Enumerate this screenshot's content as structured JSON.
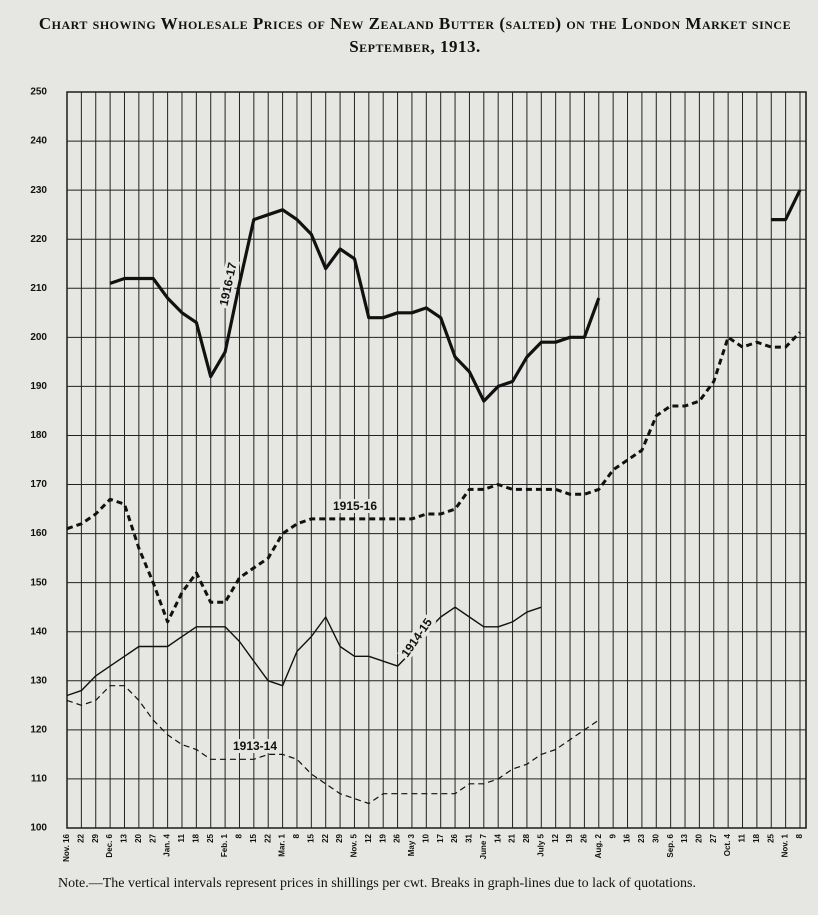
{
  "chart_data": {
    "type": "line",
    "title": "Chart showing Wholesale Prices of New Zealand Butter (salted) on the London Market since September, 1913.",
    "note": "Note.—The vertical intervals represent prices in shillings per cwt.     Breaks in graph-lines due to lack of quotations.",
    "categories": [
      "Nov. 16",
      "22",
      "29",
      "Dec. 6",
      "13",
      "20",
      "27",
      "Jan. 4",
      "11",
      "18",
      "25",
      "Feb. 1",
      "8",
      "15",
      "22",
      "Mar. 1",
      "8",
      "15",
      "22",
      "29",
      "Nov. 5",
      "12",
      "19",
      "26",
      "May 3",
      "10",
      "17",
      "26",
      "31",
      "June 7",
      "14",
      "21",
      "28",
      "July 5",
      "12",
      "19",
      "26",
      "Aug. 2",
      "9",
      "16",
      "23",
      "30",
      "Sep. 6",
      "13",
      "20",
      "27",
      "Oct. 4",
      "11",
      "18",
      "25",
      "Nov. 1",
      "8"
    ],
    "series": [
      {
        "name": "1916-17",
        "color": "#111111",
        "line_width": 3.2,
        "dashed": false,
        "values": [
          null,
          null,
          null,
          211,
          212,
          212,
          212,
          208,
          205,
          203,
          192,
          197,
          211,
          224,
          225,
          226,
          224,
          221,
          214,
          218,
          216,
          204,
          204,
          205,
          205,
          206,
          204,
          196,
          193,
          187,
          190,
          191,
          196,
          199,
          199,
          200,
          200,
          208,
          null,
          null,
          null,
          null,
          null,
          null,
          null,
          null,
          null,
          null,
          null,
          224,
          224,
          230
        ]
      },
      {
        "name": "1915-16",
        "color": "#111111",
        "line_width": 3,
        "dashed": true,
        "values": [
          161,
          162,
          164,
          167,
          166,
          157,
          150,
          142,
          148,
          152,
          146,
          146,
          151,
          153,
          155,
          160,
          162,
          163,
          163,
          163,
          163,
          163,
          163,
          163,
          163,
          164,
          164,
          165,
          169,
          169,
          170,
          169,
          169,
          169,
          169,
          168,
          168,
          169,
          173,
          175,
          177,
          184,
          186,
          186,
          187,
          191,
          200,
          198,
          199,
          198,
          198,
          201
        ]
      },
      {
        "name": "1914-15",
        "color": "#111111",
        "line_width": 1.4,
        "dashed": false,
        "values": [
          127,
          128,
          131,
          133,
          135,
          137,
          137,
          137,
          139,
          141,
          141,
          141,
          138,
          134,
          130,
          129,
          136,
          139,
          143,
          137,
          135,
          135,
          134,
          133,
          136,
          140,
          143,
          145,
          143,
          141,
          141,
          142,
          144,
          145,
          null,
          null,
          null,
          null,
          null,
          null,
          null,
          null,
          null,
          null,
          null,
          null,
          null,
          null,
          null,
          null,
          null,
          null
        ]
      },
      {
        "name": "1913-14",
        "color": "#111111",
        "line_width": 1.2,
        "dashed": true,
        "values": [
          126,
          125,
          126,
          129,
          129,
          126,
          122,
          119,
          117,
          116,
          114,
          114,
          114,
          114,
          115,
          115,
          114,
          111,
          109,
          107,
          106,
          105,
          107,
          107,
          107,
          107,
          107,
          107,
          109,
          109,
          110,
          112,
          113,
          115,
          116,
          118,
          120,
          122,
          null,
          null,
          null,
          null,
          null,
          null,
          null,
          null,
          null,
          null,
          null,
          null,
          null,
          null
        ]
      }
    ],
    "ylim": [
      100,
      250
    ],
    "yticks": [
      100,
      110,
      120,
      130,
      140,
      150,
      160,
      170,
      180,
      190,
      200,
      210,
      220,
      230,
      240,
      250
    ],
    "grid": true
  }
}
